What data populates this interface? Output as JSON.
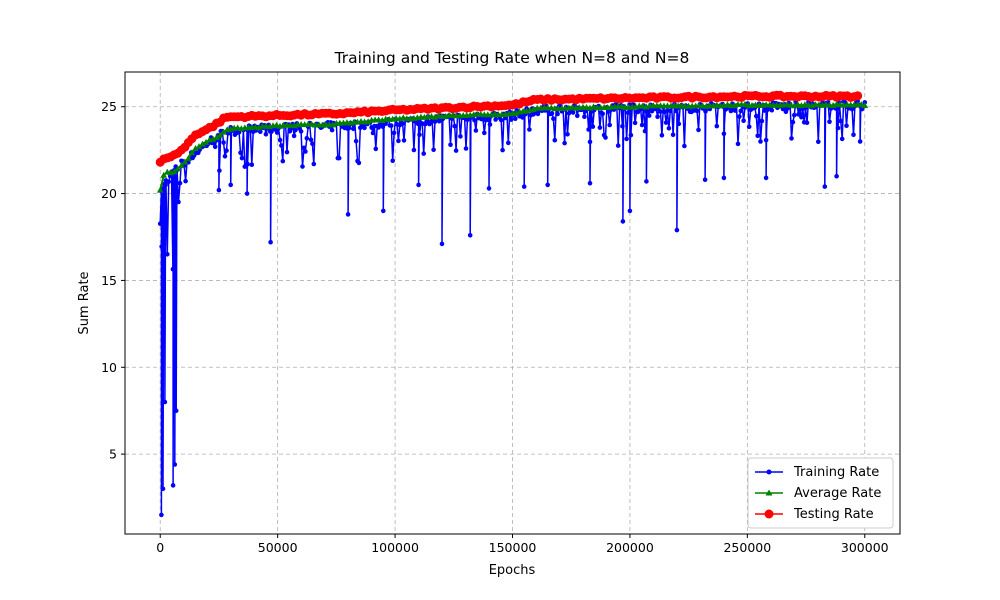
{
  "chart_data": {
    "type": "line",
    "title": "Training and Testing Rate when N=8 and N=8",
    "xlabel": "Epochs",
    "ylabel": "Sum Rate",
    "xlim": [
      -15000,
      315000
    ],
    "ylim": [
      0.4,
      27
    ],
    "xticks": [
      0,
      50000,
      100000,
      150000,
      200000,
      250000,
      300000
    ],
    "yticks": [
      5,
      10,
      15,
      20,
      25
    ],
    "grid": true,
    "legend_position": "lower-right",
    "series": [
      {
        "name": "Training Rate",
        "color": "#0000ff",
        "marker": "dot",
        "baseline": [
          [
            0,
            20.0
          ],
          [
            4000,
            21.0
          ],
          [
            10000,
            21.8
          ],
          [
            20000,
            22.9
          ],
          [
            28000,
            23.6
          ],
          [
            40000,
            23.7
          ],
          [
            80000,
            23.9
          ],
          [
            100000,
            24.1
          ],
          [
            120000,
            24.3
          ],
          [
            150000,
            24.5
          ],
          [
            160000,
            24.8
          ],
          [
            200000,
            24.9
          ],
          [
            250000,
            25.0
          ],
          [
            300000,
            25.1
          ]
        ],
        "dips": [
          [
            500,
            1.5
          ],
          [
            1200,
            3.0
          ],
          [
            2000,
            8.0
          ],
          [
            5500,
            3.2
          ],
          [
            6200,
            4.4
          ],
          [
            6800,
            7.5
          ],
          [
            25000,
            20.2
          ],
          [
            30000,
            20.5
          ],
          [
            37000,
            20.0
          ],
          [
            47000,
            17.2
          ],
          [
            80000,
            18.8
          ],
          [
            95000,
            19.0
          ],
          [
            110000,
            20.5
          ],
          [
            120000,
            17.1
          ],
          [
            132000,
            17.6
          ],
          [
            140000,
            20.3
          ],
          [
            155000,
            20.4
          ],
          [
            165000,
            20.5
          ],
          [
            183000,
            20.6
          ],
          [
            197000,
            18.4
          ],
          [
            200000,
            19.0
          ],
          [
            207000,
            20.7
          ],
          [
            220000,
            17.9
          ],
          [
            232000,
            20.8
          ],
          [
            240000,
            20.9
          ],
          [
            258000,
            20.9
          ],
          [
            283000,
            20.4
          ],
          [
            288000,
            21.0
          ],
          [
            298000,
            23.0
          ]
        ]
      },
      {
        "name": "Average Rate",
        "color": "#008000",
        "marker": "triangle",
        "values": [
          [
            0,
            20.2
          ],
          [
            2000,
            21.3
          ],
          [
            5000,
            21.2
          ],
          [
            10000,
            21.7
          ],
          [
            15000,
            22.6
          ],
          [
            20000,
            23.0
          ],
          [
            25000,
            23.3
          ],
          [
            28000,
            23.7
          ],
          [
            50000,
            23.9
          ],
          [
            75000,
            24.0
          ],
          [
            100000,
            24.3
          ],
          [
            125000,
            24.5
          ],
          [
            150000,
            24.6
          ],
          [
            160000,
            24.9
          ],
          [
            200000,
            25.0
          ],
          [
            250000,
            25.1
          ],
          [
            300000,
            25.1
          ]
        ]
      },
      {
        "name": "Testing Rate",
        "color": "#ff0000",
        "marker": "circle",
        "values": [
          [
            0,
            21.8
          ],
          [
            3000,
            22.1
          ],
          [
            6000,
            22.2
          ],
          [
            10000,
            22.6
          ],
          [
            15000,
            23.4
          ],
          [
            20000,
            23.7
          ],
          [
            25000,
            24.1
          ],
          [
            28000,
            24.4
          ],
          [
            50000,
            24.5
          ],
          [
            75000,
            24.6
          ],
          [
            100000,
            24.8
          ],
          [
            125000,
            24.95
          ],
          [
            150000,
            25.1
          ],
          [
            160000,
            25.4
          ],
          [
            200000,
            25.5
          ],
          [
            250000,
            25.6
          ],
          [
            300000,
            25.6
          ]
        ]
      }
    ]
  }
}
